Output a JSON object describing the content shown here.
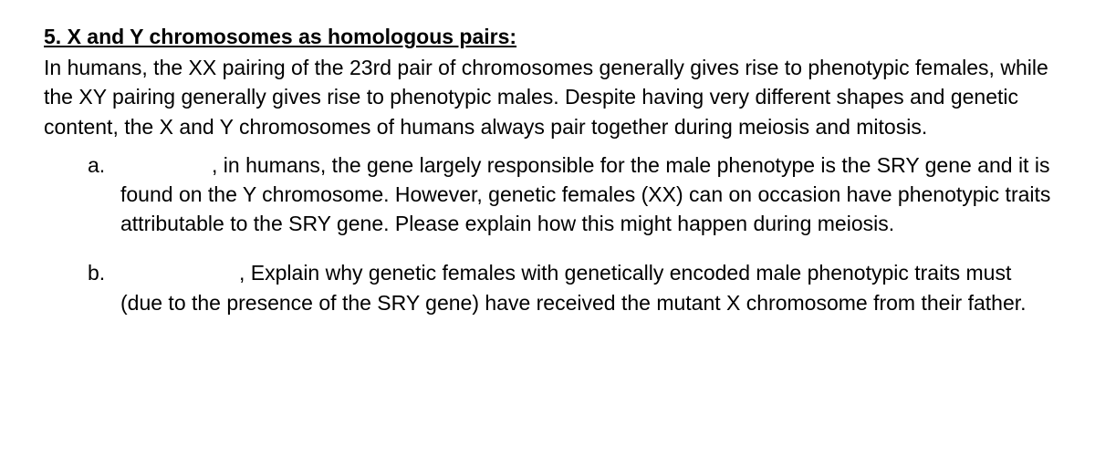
{
  "font_family": "Arial",
  "font_size_pt": 17,
  "text_color": "#000000",
  "background_color": "#ffffff",
  "heading": "5. X and Y chromosomes as homologous pairs:",
  "intro": "In humans, the XX pairing of the 23rd pair of chromosomes generally gives rise to phenotypic females, while the XY pairing generally gives rise to phenotypic males. Despite having very different shapes and genetic content, the X and Y chromosomes of humans always pair together during meiosis and mitosis.",
  "items": {
    "a": {
      "label": "a.",
      "text": ", in humans, the gene largely responsible for the male phenotype is the SRY gene and it is found on the Y chromosome. However, genetic females (XX) can on occasion have phenotypic traits attributable to the SRY gene. Please explain how this might happen during meiosis."
    },
    "b": {
      "label": "b.",
      "text": ", Explain why genetic females with genetically encoded male phenotypic traits must (due to the presence of the SRY gene) have received the mutant X chromosome from their father."
    }
  }
}
